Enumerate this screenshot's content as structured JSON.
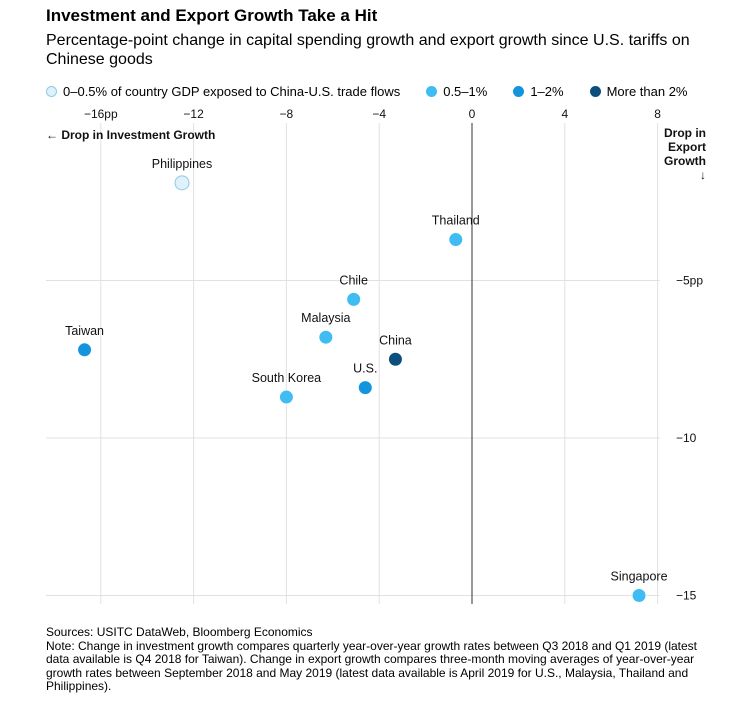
{
  "header": {
    "title": "Investment and Export Growth Take a Hit",
    "subtitle": "Percentage-point change in capital spending growth and export growth since U.S. tariffs on Chinese goods"
  },
  "legend": [
    {
      "label": "0–0.5% of country GDP exposed to China-U.S. trade flows",
      "color": "#dff1fb"
    },
    {
      "label": "0.5–1%",
      "color": "#3fbcf1"
    },
    {
      "label": "1–2%",
      "color": "#1494dc"
    },
    {
      "label": "More than 2%",
      "color": "#0c4e7c"
    }
  ],
  "chart_data": {
    "type": "scatter",
    "title": "Investment and Export Growth Take a Hit",
    "xlabel": "← Drop in Investment Growth",
    "ylabel": "Drop in Export Growth ↓",
    "xlim": [
      -18,
      8
    ],
    "ylim": [
      -15.3,
      0
    ],
    "x_ticks": [
      -16,
      -12,
      -8,
      -4,
      0,
      4,
      8
    ],
    "x_tick_labels": [
      "−16pp",
      "−12",
      "−8",
      "−4",
      "0",
      "4",
      "8"
    ],
    "y_ticks": [
      -5,
      -10,
      -15
    ],
    "y_tick_labels": [
      "−5pp",
      "−10",
      "−15"
    ],
    "grid": true,
    "legend_position": "top",
    "series": [
      {
        "name": "0–0.5% of country GDP exposed to China-U.S. trade flows",
        "color": "#dff1fb",
        "points": [
          {
            "label": "Philippines",
            "x": -12.5,
            "y": -1.9
          }
        ]
      },
      {
        "name": "0.5–1%",
        "color": "#3fbcf1",
        "points": [
          {
            "label": "Thailand",
            "x": -0.7,
            "y": -3.7
          },
          {
            "label": "Chile",
            "x": -5.1,
            "y": -5.6
          },
          {
            "label": "Malaysia",
            "x": -6.3,
            "y": -6.8
          },
          {
            "label": "South Korea",
            "x": -8.0,
            "y": -8.7
          },
          {
            "label": "Singapore",
            "x": 7.2,
            "y": -15.0
          }
        ]
      },
      {
        "name": "1–2%",
        "color": "#1494dc",
        "points": [
          {
            "label": "Taiwan",
            "x": -16.7,
            "y": -7.2
          },
          {
            "label": "U.S.",
            "x": -4.6,
            "y": -8.4
          }
        ]
      },
      {
        "name": "More than 2%",
        "color": "#0c4e7c",
        "points": [
          {
            "label": "China",
            "x": -3.3,
            "y": -7.5
          }
        ]
      }
    ]
  },
  "footnote": {
    "sources": "Sources: USITC DataWeb, Bloomberg Economics",
    "note_lines": [
      "Note: Change in investment growth compares quarterly year-over-year growth rates between Q3 2018 and Q1 2019 (latest",
      "data available is Q4 2018 for Taiwan). Change in export growth compares three-month moving averages of year-over-year",
      "growth rates between September 2018 and May 2019 (latest data available is April 2019 for U.S., Malaysia, Thailand and",
      "Philippines)."
    ]
  }
}
